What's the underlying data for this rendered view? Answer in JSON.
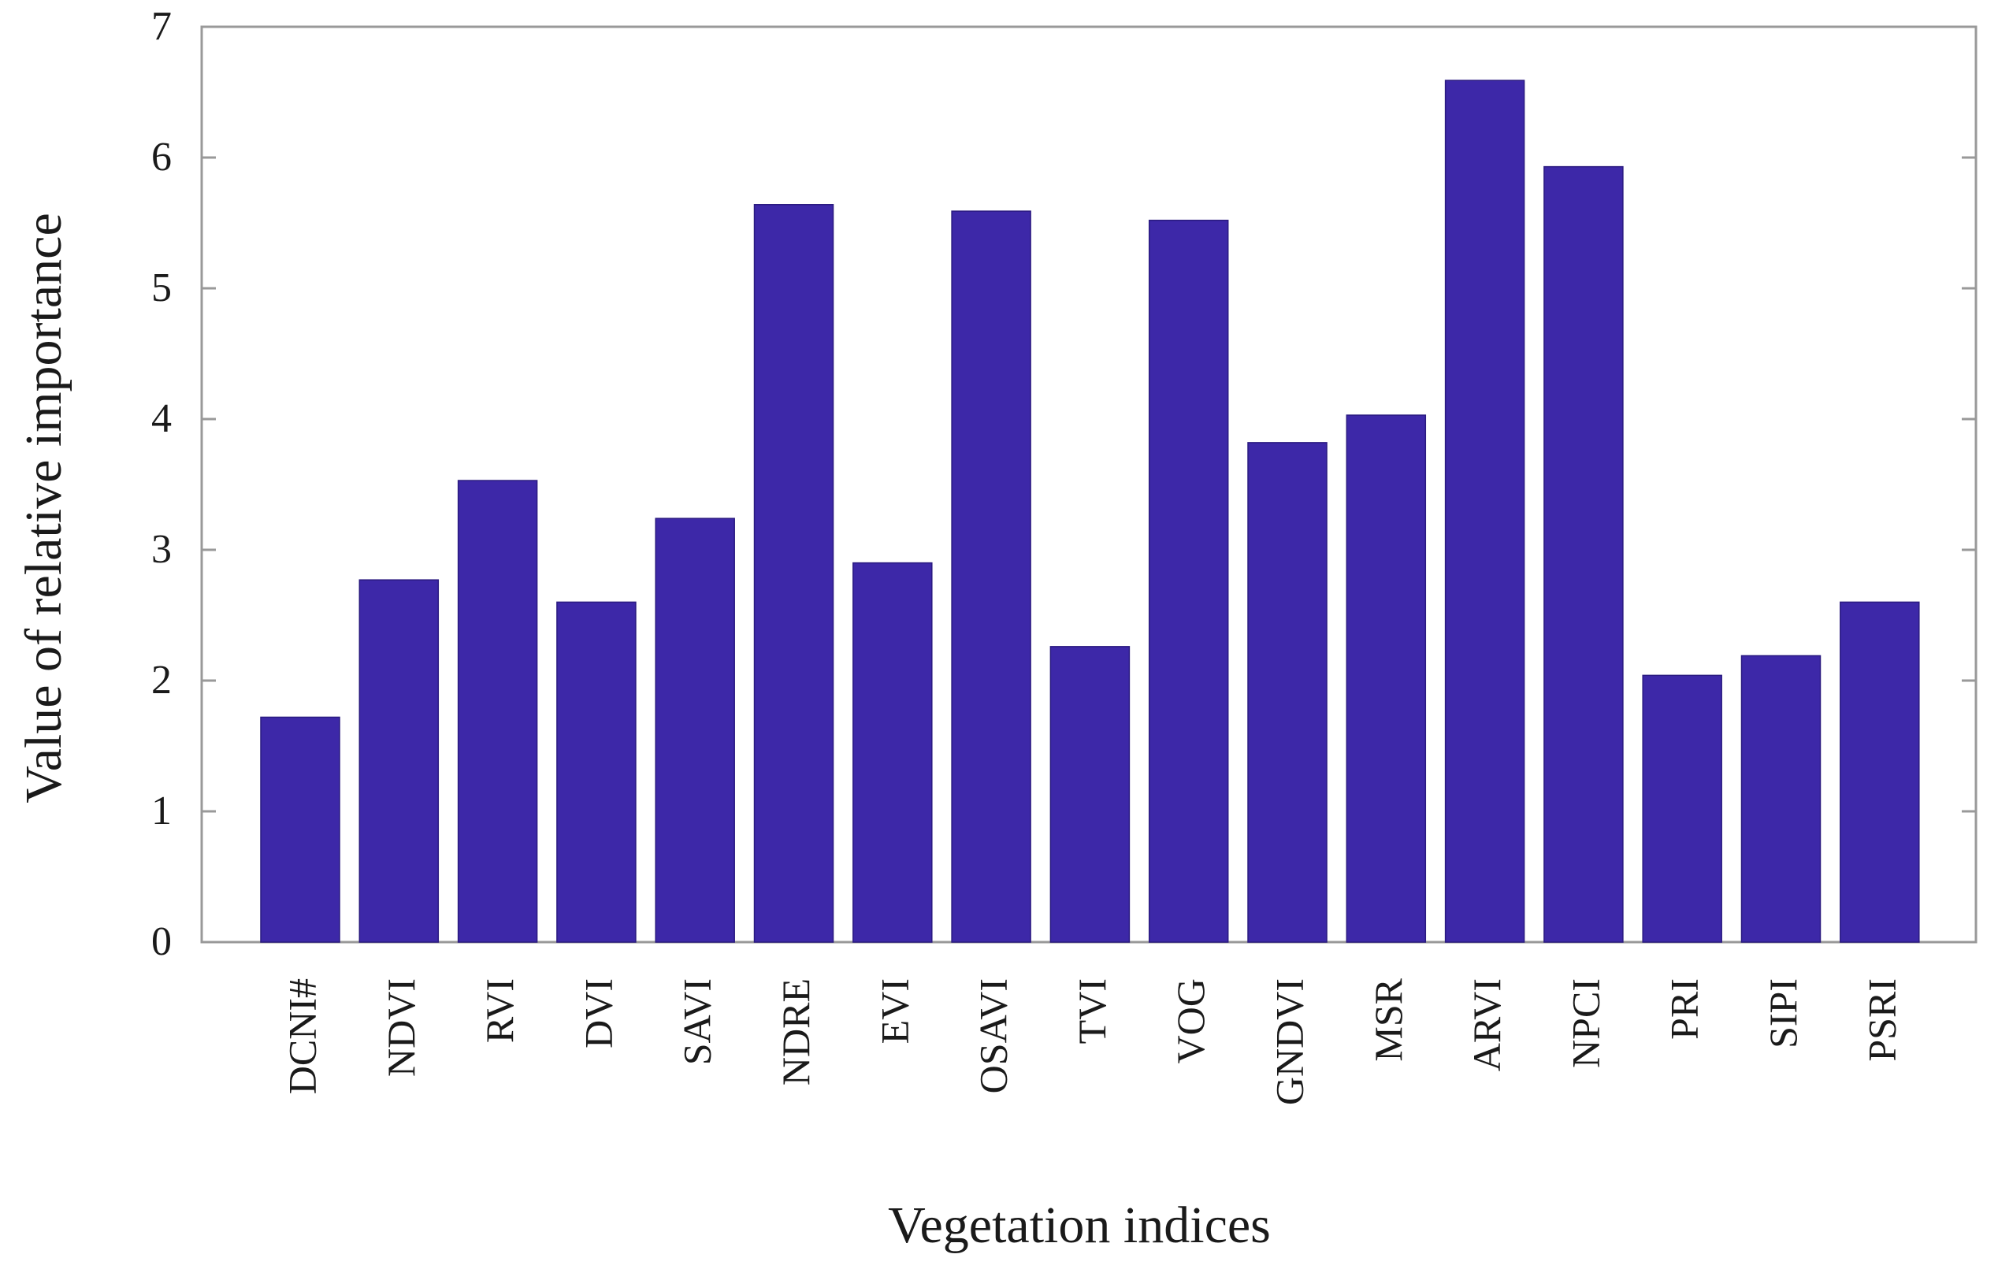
{
  "chart_data": {
    "type": "bar",
    "title": "",
    "xlabel": "Vegetation indices",
    "ylabel": "Value of relative importance",
    "categories": [
      "DCNI#",
      "NDVI",
      "RVI",
      "DVI",
      "SAVI",
      "NDRE",
      "EVI",
      "OSAVI",
      "TVI",
      "VOG",
      "GNDVI",
      "MSR",
      "ARVI",
      "NPCI",
      "PRI",
      "SIPI",
      "PSRI"
    ],
    "values": [
      1.72,
      2.77,
      3.53,
      2.6,
      3.24,
      5.64,
      2.9,
      5.59,
      2.26,
      5.52,
      3.82,
      4.03,
      6.59,
      5.93,
      2.04,
      2.19,
      2.6
    ],
    "ylim": [
      0,
      7
    ],
    "yticks": [
      0,
      1,
      2,
      3,
      4,
      5,
      6,
      7
    ],
    "grid": false,
    "bar_color": "#3d28a8",
    "axis_color": "#999999"
  }
}
